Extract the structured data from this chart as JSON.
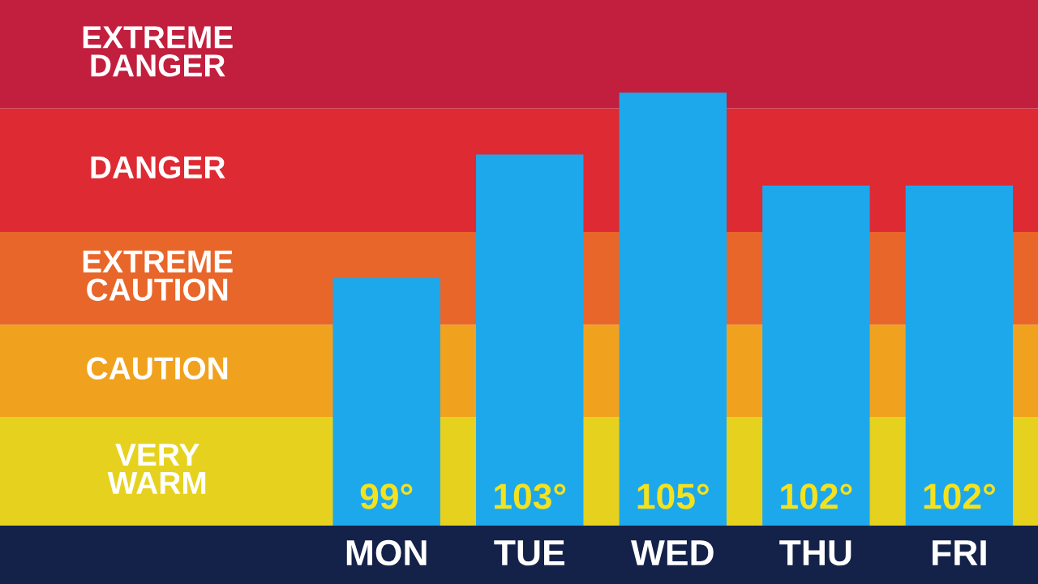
{
  "chart_data": {
    "type": "bar",
    "categories": [
      "MON",
      "TUE",
      "WED",
      "THU",
      "FRI"
    ],
    "values": [
      99,
      103,
      105,
      102,
      102
    ],
    "color": "#1ea8ec",
    "data_labels": true,
    "value_labels": [
      "99°",
      "103°",
      "105°",
      "102°",
      "102°"
    ],
    "ylim": [
      91,
      108
    ],
    "tick_labels": "x",
    "grid": false,
    "legend": false,
    "bands": [
      {
        "axis": "y",
        "from": 91,
        "to": 94.5,
        "label": "VERY\nWARM",
        "color": "#e6d21e"
      },
      {
        "axis": "y",
        "from": 94.5,
        "to": 97.5,
        "label": "CAUTION",
        "color": "#f0a21e"
      },
      {
        "axis": "y",
        "from": 97.5,
        "to": 100.5,
        "label": "EXTREME\nCAUTION",
        "color": "#e8662a"
      },
      {
        "axis": "y",
        "from": 100.5,
        "to": 104.5,
        "label": "DANGER",
        "color": "#de2a32"
      },
      {
        "axis": "y",
        "from": 104.5,
        "to": 108,
        "label": "EXTREME\nDANGER",
        "color": "#c21e3e"
      }
    ]
  }
}
